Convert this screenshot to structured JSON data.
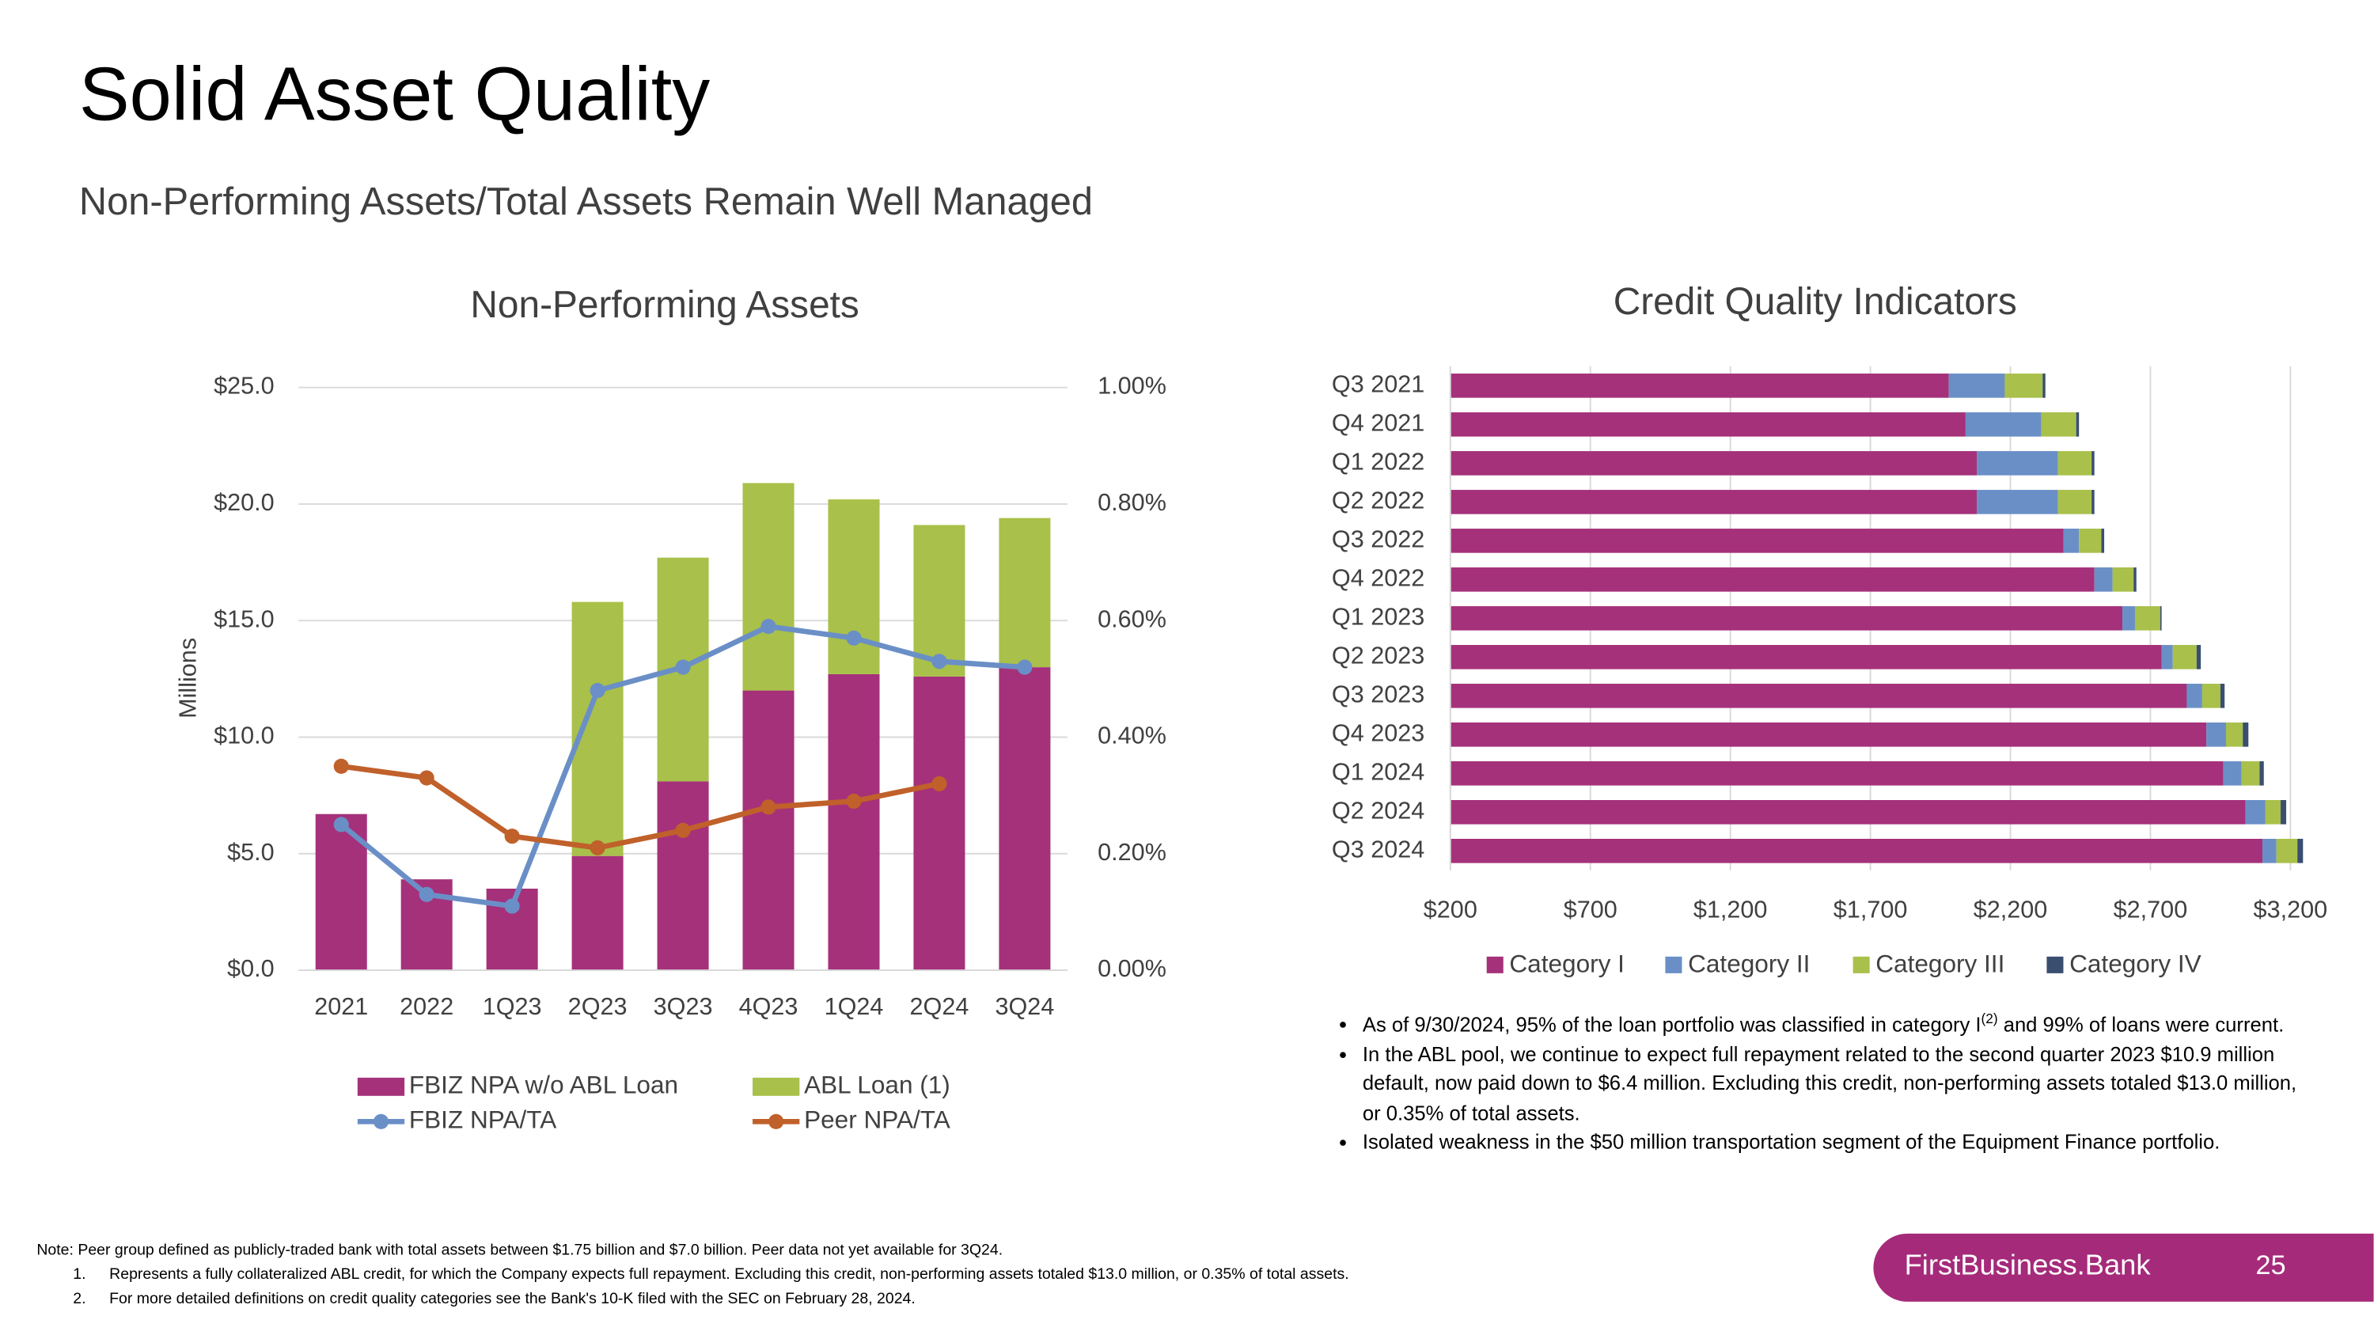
{
  "title": "Solid Asset Quality",
  "subtitle": "Non-Performing Assets/Total Assets Remain Well Managed",
  "chart_data": [
    {
      "type": "bar_line",
      "title": "Non-Performing Assets",
      "y_label": "Millions",
      "stacked": true,
      "categories": [
        "2021",
        "2022",
        "1Q23",
        "2Q23",
        "3Q23",
        "4Q23",
        "1Q24",
        "2Q24",
        "3Q24"
      ],
      "series": [
        {
          "name": "FBIZ NPA w/o ABL Loan",
          "type": "bar",
          "color": "#a5317a",
          "values": [
            6.7,
            3.9,
            3.5,
            4.9,
            8.1,
            12.0,
            12.7,
            12.6,
            13.0
          ]
        },
        {
          "name": "ABL Loan (1)",
          "type": "bar",
          "color": "#a9c04a",
          "values": [
            0,
            0,
            0,
            10.9,
            9.6,
            8.9,
            7.5,
            6.5,
            6.4
          ]
        },
        {
          "name": "FBIZ NPA/TA",
          "type": "line",
          "axis": "y2",
          "color": "#6a8fc7",
          "values": [
            0.25,
            0.13,
            0.11,
            0.48,
            0.52,
            0.59,
            0.57,
            0.53,
            0.52
          ]
        },
        {
          "name": "Peer NPA/TA",
          "type": "line",
          "axis": "y2",
          "color": "#c0602a",
          "values": [
            0.35,
            0.33,
            0.23,
            0.21,
            0.24,
            0.28,
            0.29,
            0.32,
            null
          ]
        }
      ],
      "ylim": [
        0,
        25
      ],
      "yticks": [
        {
          "value": 0,
          "label": "$0.0"
        },
        {
          "value": 5,
          "label": "$5.0"
        },
        {
          "value": 10,
          "label": "$10.0"
        },
        {
          "value": 15,
          "label": "$15.0"
        },
        {
          "value": 20,
          "label": "$20.0"
        },
        {
          "value": 25,
          "label": "$25.0"
        }
      ],
      "y2lim": [
        0,
        1
      ],
      "y2ticks": [
        {
          "value": 0,
          "label": "0.00%"
        },
        {
          "value": 0.2,
          "label": "0.20%"
        },
        {
          "value": 0.4,
          "label": "0.40%"
        },
        {
          "value": 0.6,
          "label": "0.60%"
        },
        {
          "value": 0.8,
          "label": "0.80%"
        },
        {
          "value": 1,
          "label": "1.00%"
        }
      ],
      "grid": true,
      "legend": "bottom"
    },
    {
      "type": "hbar",
      "title": "Credit Quality Indicators",
      "stacked": true,
      "categories": [
        "Q3 2021",
        "Q4 2021",
        "Q1 2022",
        "Q2 2022",
        "Q3 2022",
        "Q4 2022",
        "Q1 2023",
        "Q2 2023",
        "Q3 2023",
        "Q4 2023",
        "Q1 2024",
        "Q2 2024",
        "Q3 2024"
      ],
      "series": [
        {
          "name": "Category I",
          "color": "#a5317a",
          "values": [
            1780,
            1840,
            1880,
            1880,
            2190,
            2300,
            2400,
            2540,
            2630,
            2700,
            2760,
            2840,
            2900
          ]
        },
        {
          "name": "Category II",
          "color": "#6a8fc7",
          "values": [
            200,
            270,
            290,
            290,
            55,
            65,
            45,
            40,
            55,
            70,
            65,
            70,
            50
          ]
        },
        {
          "name": "Category III",
          "color": "#a9c04a",
          "values": [
            135,
            125,
            120,
            120,
            80,
            75,
            90,
            85,
            65,
            60,
            65,
            55,
            75
          ]
        },
        {
          "name": "Category IV",
          "color": "#3a4e70",
          "values": [
            10,
            10,
            10,
            10,
            10,
            10,
            5,
            15,
            15,
            20,
            15,
            20,
            20
          ]
        }
      ],
      "xlim": [
        200,
        3200
      ],
      "xticks": [
        {
          "value": 200,
          "label": "$200"
        },
        {
          "value": 700,
          "label": "$700"
        },
        {
          "value": 1200,
          "label": "$1,200"
        },
        {
          "value": 1700,
          "label": "$1,700"
        },
        {
          "value": 2200,
          "label": "$2,200"
        },
        {
          "value": 2700,
          "label": "$2,700"
        },
        {
          "value": 3200,
          "label": "$3,200"
        }
      ],
      "grid": true,
      "legend": "bottom"
    }
  ],
  "bullets": [
    {
      "text": "As of 9/30/2024, 95% of the loan portfolio was classified in category I",
      "superscript": "(2)",
      "text_end": " and 99% of loans were current."
    },
    {
      "text": "In the ABL pool, we continue to expect full repayment related to the second quarter 2023 $10.9 million default, now paid down to $6.4 million. Excluding this credit, non-performing assets totaled $13.0 million, or 0.35% of total assets."
    },
    {
      "text": "Isolated weakness in the $50 million transportation segment of the Equipment Finance portfolio."
    }
  ],
  "notes": {
    "note": "Note: Peer group defined as publicly-traded bank with total assets between $1.75 billion and $7.0 billion. Peer data not yet available for 3Q24.",
    "items": [
      {
        "number": "1.",
        "text": "Represents a fully collateralized ABL credit, for which the Company expects full repayment. Excluding this credit, non-performing assets totaled $13.0 million, or 0.35% of total assets."
      },
      {
        "number": "2.",
        "text": "For more detailed definitions on credit quality categories see the Bank's 10-K filed with the SEC on February 28, 2024."
      }
    ]
  },
  "footer": {
    "brand": "FirstBusiness.Bank",
    "page": "25"
  }
}
